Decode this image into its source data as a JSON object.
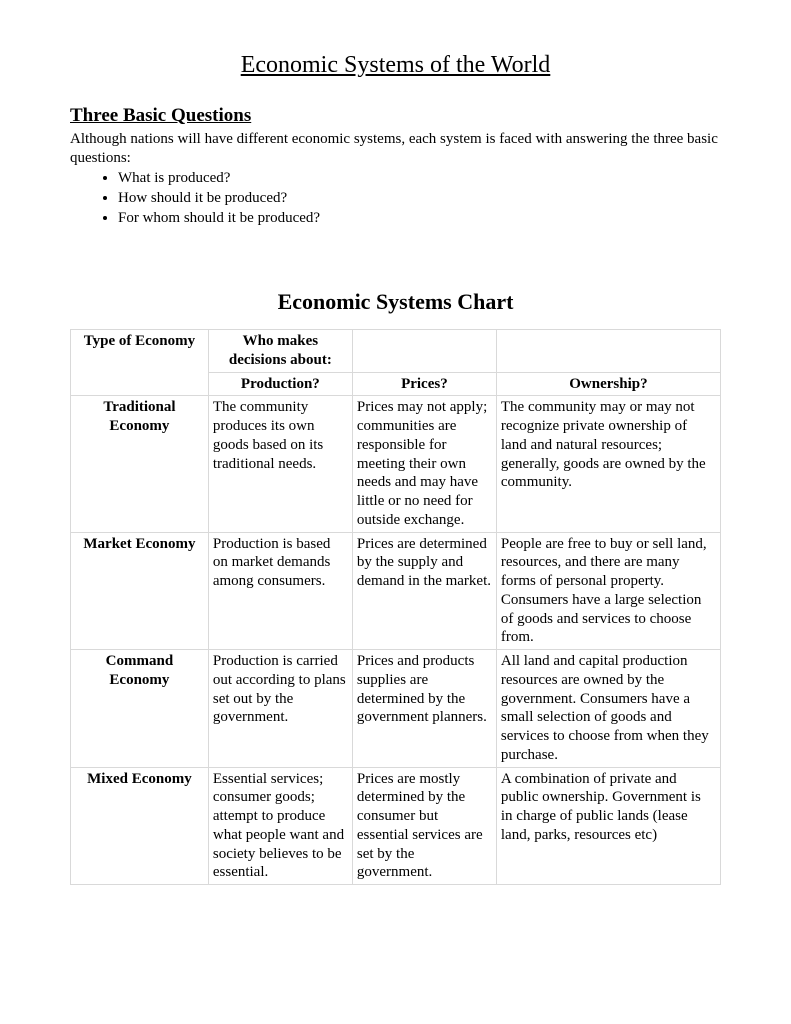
{
  "page": {
    "title": "Economic Systems of the World",
    "section_heading": "Three Basic Questions",
    "intro_text": "Although nations will have different economic systems, each system is faced with answering the three basic questions:",
    "bullets": [
      "What is produced?",
      "How should it be produced?",
      "For whom should it be produced?"
    ],
    "chart_title": "Economic Systems Chart"
  },
  "table": {
    "headers": {
      "type": "Type of Economy",
      "decisions_line1": "Who makes",
      "decisions_line2": "decisions about:",
      "production": "Production?",
      "prices": "Prices?",
      "ownership": "Ownership?"
    },
    "rows": [
      {
        "type_line1": "Traditional",
        "type_line2": "Economy",
        "production": "The community produces its own goods based on its traditional needs.",
        "prices": "Prices may not apply; communities are responsible for meeting their own needs and may have little or no need for outside exchange.",
        "ownership": "The community may or may not recognize private ownership of land and natural resources; generally, goods are owned by the community."
      },
      {
        "type_line1": "Market Economy",
        "type_line2": "",
        "production": "Production is based on market demands among consumers.",
        "prices": "Prices are determined by the supply and demand in the market.",
        "ownership": "People are free to buy or sell land, resources, and there are many forms of personal property. Consumers have a large selection of goods and services to choose from."
      },
      {
        "type_line1": "Command Economy",
        "type_line2": "",
        "production": "Production is carried out according to plans set out by the government.",
        "prices": "Prices and products supplies are determined by the government planners.",
        "ownership": "All land and capital production resources are owned by the government.  Consumers have a small selection of goods and services to choose from when they purchase."
      },
      {
        "type_line1": "Mixed Economy",
        "type_line2": "",
        "production": "Essential services; consumer goods; attempt to produce what people want and society believes to be essential.",
        "prices": "Prices are mostly determined by the consumer but essential services are set by the government.",
        "ownership": "A combination of private and public ownership.  Government is in charge of public lands (lease land, parks, resources etc)"
      }
    ]
  }
}
